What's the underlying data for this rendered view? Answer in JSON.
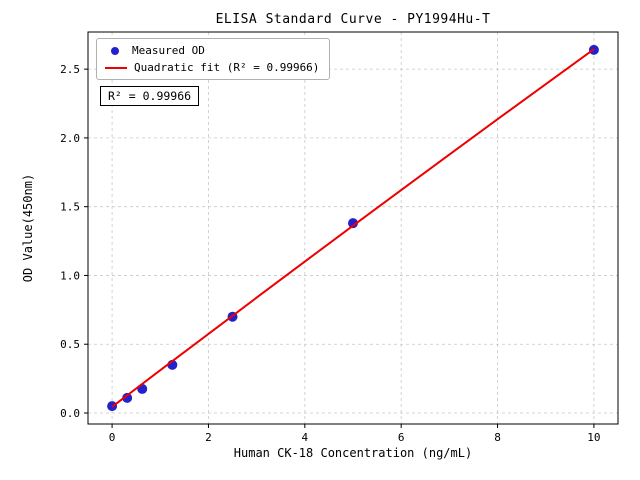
{
  "chart_data": {
    "type": "scatter",
    "title": "ELISA Standard Curve - PY1994Hu-T",
    "xlabel": "Human CK-18 Concentration (ng/mL)",
    "ylabel": "OD Value(450nm)",
    "xlim": [
      -0.5,
      10.5
    ],
    "ylim": [
      -0.08,
      2.77
    ],
    "x_ticks": [
      0,
      2,
      4,
      6,
      8,
      10
    ],
    "x_tick_labels": [
      "0",
      "2",
      "4",
      "6",
      "8",
      "10"
    ],
    "y_ticks": [
      0.0,
      0.5,
      1.0,
      1.5,
      2.0,
      2.5
    ],
    "y_tick_labels": [
      "0.0",
      "0.5",
      "1.0",
      "1.5",
      "2.0",
      "2.5"
    ],
    "grid": true,
    "legend_position": "upper-left",
    "annotation": "R² = 0.99966",
    "colors": {
      "scatter": "#2222cc",
      "fit_line": "#ee0000",
      "grid": "#c8c8c8",
      "frame": "#000000"
    },
    "series": [
      {
        "name": "Measured OD",
        "type": "scatter",
        "color": "#2222cc",
        "x": [
          0,
          0.3125,
          0.625,
          1.25,
          2.5,
          5,
          10
        ],
        "y": [
          0.05,
          0.11,
          0.175,
          0.35,
          0.7,
          1.38,
          2.64
        ]
      },
      {
        "name": "Quadratic fit (R² = 0.99966)",
        "type": "line",
        "color": "#ee0000",
        "x": [
          0,
          1,
          2,
          3,
          4,
          5,
          6,
          7,
          8,
          9,
          10
        ],
        "y": [
          0.045,
          0.311,
          0.575,
          0.839,
          1.101,
          1.362,
          1.621,
          1.879,
          2.136,
          2.391,
          2.645
        ]
      }
    ]
  }
}
